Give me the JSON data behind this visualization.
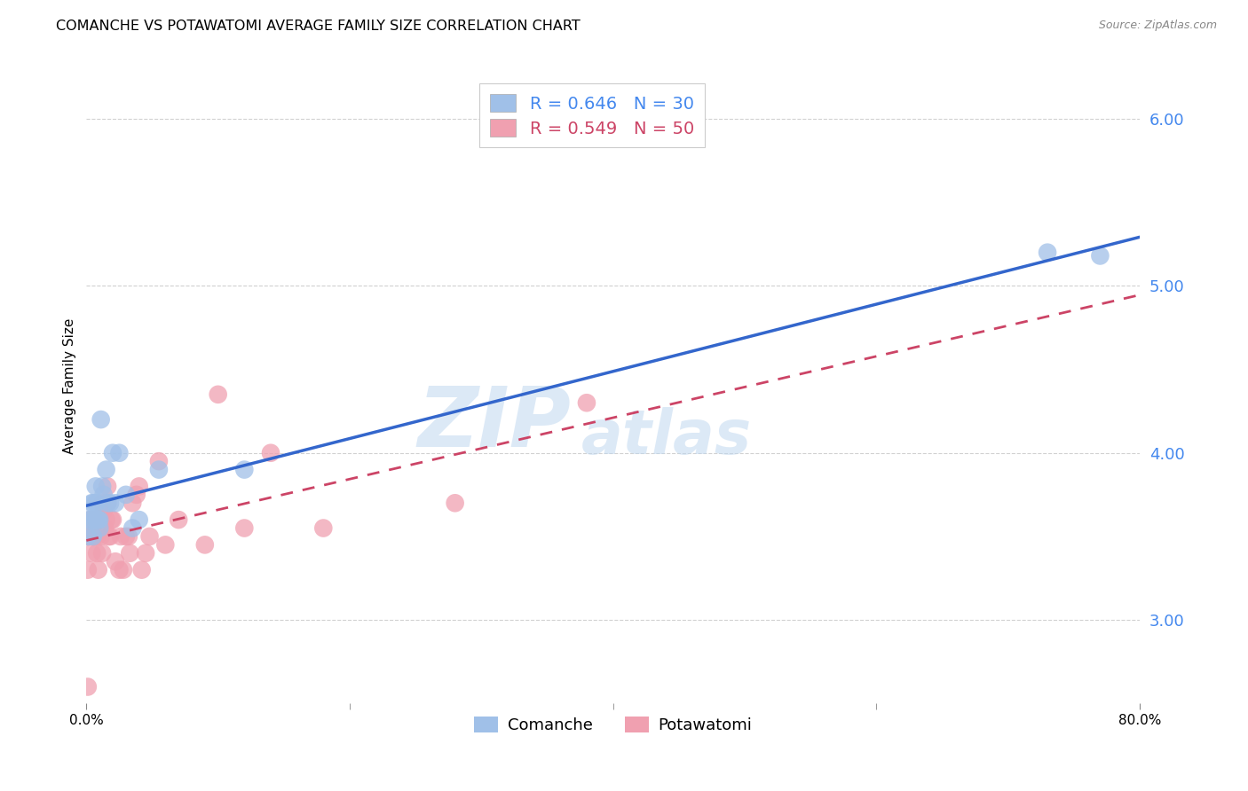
{
  "title": "COMANCHE VS POTAWATOMI AVERAGE FAMILY SIZE CORRELATION CHART",
  "source": "Source: ZipAtlas.com",
  "ylabel": "Average Family Size",
  "xlim": [
    0.0,
    0.8
  ],
  "ylim": [
    2.5,
    6.3
  ],
  "yticks": [
    3.0,
    4.0,
    5.0,
    6.0
  ],
  "xtick_positions": [
    0.0,
    0.8
  ],
  "xtick_labels": [
    "0.0%",
    "80.0%"
  ],
  "xtick_minor_positions": [
    0.2,
    0.4,
    0.6
  ],
  "watermark_zip": "ZIP",
  "watermark_atlas": "atlas",
  "comanche_color": "#a0c0e8",
  "potawatomi_color": "#f0a0b0",
  "comanche_line_color": "#3366cc",
  "potawatomi_line_color": "#cc4466",
  "comanche_R": 0.646,
  "comanche_N": 30,
  "potawatomi_R": 0.549,
  "potawatomi_N": 50,
  "comanche_x": [
    0.001,
    0.002,
    0.003,
    0.004,
    0.005,
    0.005,
    0.006,
    0.007,
    0.007,
    0.008,
    0.008,
    0.009,
    0.01,
    0.01,
    0.011,
    0.012,
    0.013,
    0.015,
    0.016,
    0.018,
    0.02,
    0.022,
    0.025,
    0.03,
    0.035,
    0.04,
    0.055,
    0.12,
    0.73,
    0.77
  ],
  "comanche_y": [
    3.5,
    3.6,
    3.6,
    3.7,
    3.5,
    3.7,
    3.6,
    3.7,
    3.8,
    3.6,
    3.7,
    3.6,
    3.55,
    3.6,
    4.2,
    3.8,
    3.75,
    3.9,
    3.7,
    3.7,
    4.0,
    3.7,
    4.0,
    3.75,
    3.55,
    3.6,
    3.9,
    3.9,
    5.2,
    5.18
  ],
  "potawatomi_x": [
    0.001,
    0.001,
    0.002,
    0.003,
    0.004,
    0.005,
    0.005,
    0.006,
    0.006,
    0.007,
    0.008,
    0.008,
    0.009,
    0.01,
    0.011,
    0.012,
    0.012,
    0.013,
    0.014,
    0.015,
    0.016,
    0.016,
    0.017,
    0.018,
    0.019,
    0.02,
    0.022,
    0.025,
    0.026,
    0.028,
    0.03,
    0.032,
    0.033,
    0.035,
    0.038,
    0.04,
    0.042,
    0.045,
    0.048,
    0.055,
    0.06,
    0.07,
    0.09,
    0.1,
    0.12,
    0.14,
    0.18,
    0.28,
    0.38,
    0.001
  ],
  "potawatomi_y": [
    3.3,
    3.5,
    3.5,
    3.6,
    3.4,
    3.5,
    3.6,
    3.5,
    3.6,
    3.6,
    3.4,
    3.5,
    3.3,
    3.6,
    3.5,
    3.4,
    3.7,
    3.65,
    3.55,
    3.6,
    3.7,
    3.8,
    3.5,
    3.5,
    3.6,
    3.6,
    3.35,
    3.3,
    3.5,
    3.3,
    3.5,
    3.5,
    3.4,
    3.7,
    3.75,
    3.8,
    3.3,
    3.4,
    3.5,
    3.95,
    3.45,
    3.6,
    3.45,
    4.35,
    3.55,
    4.0,
    3.55,
    3.7,
    4.3,
    2.6
  ],
  "background_color": "#ffffff",
  "grid_color": "#cccccc",
  "title_fontsize": 11.5,
  "axis_label_fontsize": 11,
  "tick_fontsize": 11,
  "legend_fontsize": 14,
  "ytick_color": "#4488ee",
  "ytick_fontsize": 13
}
